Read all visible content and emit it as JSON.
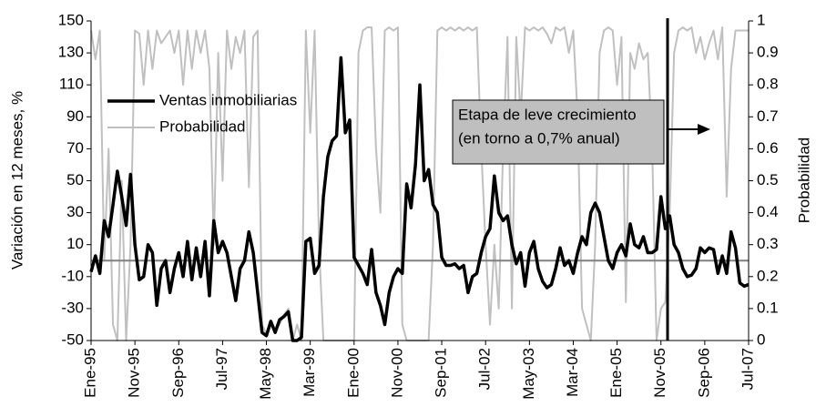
{
  "chart_data": {
    "type": "line",
    "ylabel": "Variación en 12 meses, %",
    "y2label": "Probabilidad",
    "annotations": [
      "Etapa de leve crecimiento",
      "(en torno a 0,7% anual)"
    ],
    "reference_line": 0,
    "categories": [
      "Ene-95",
      null,
      null,
      null,
      null,
      null,
      null,
      null,
      null,
      null,
      "Nov-95",
      null,
      null,
      null,
      null,
      null,
      null,
      null,
      null,
      null,
      "Sep-96",
      null,
      null,
      null,
      null,
      null,
      null,
      null,
      null,
      null,
      "Jul-97",
      null,
      null,
      null,
      null,
      null,
      null,
      null,
      null,
      null,
      "May-98",
      null,
      null,
      null,
      null,
      null,
      null,
      null,
      null,
      null,
      "Mar-99",
      null,
      null,
      null,
      null,
      null,
      null,
      null,
      null,
      null,
      "Ene-00",
      null,
      null,
      null,
      null,
      null,
      null,
      null,
      null,
      null,
      "Nov-00",
      null,
      null,
      null,
      null,
      null,
      null,
      null,
      null,
      null,
      "Sep-01",
      null,
      null,
      null,
      null,
      null,
      null,
      null,
      null,
      null,
      "Jul-02",
      null,
      null,
      null,
      null,
      null,
      null,
      null,
      null,
      null,
      "May-03",
      null,
      null,
      null,
      null,
      null,
      null,
      null,
      null,
      null,
      "Mar-04",
      null,
      null,
      null,
      null,
      null,
      null,
      null,
      null,
      null,
      "Ene-05",
      null,
      null,
      null,
      null,
      null,
      null,
      null,
      null,
      null,
      "Nov-05",
      null,
      null,
      null,
      null,
      null,
      null,
      null,
      null,
      null,
      "Sep-06",
      null,
      null,
      null,
      null,
      null,
      null,
      null,
      null,
      null,
      "Jul-07"
    ],
    "series": [
      {
        "name": "Ventas inmobiliarias",
        "color": "#000000",
        "width": 3.5,
        "values": [
          -7,
          3,
          -8,
          25,
          15,
          35,
          56,
          40,
          22,
          54,
          10,
          -12,
          -10,
          10,
          5,
          -28,
          -5,
          0,
          -20,
          -5,
          5,
          -10,
          12,
          -12,
          8,
          -10,
          12,
          -22,
          25,
          5,
          12,
          5,
          -10,
          -25,
          -5,
          0,
          18,
          5,
          -20,
          -45,
          -47,
          -38,
          -45,
          -37,
          -35,
          -32,
          -50,
          -50,
          -48,
          12,
          14,
          -8,
          -3,
          40,
          65,
          75,
          78,
          127,
          80,
          88,
          2,
          -3,
          -8,
          -15,
          7,
          -20,
          -28,
          -40,
          -20,
          -10,
          -5,
          -8,
          48,
          33,
          60,
          110,
          50,
          57,
          35,
          30,
          2,
          -3,
          -3,
          -2,
          -5,
          -3,
          -20,
          -10,
          -8,
          5,
          15,
          20,
          53,
          30,
          25,
          28,
          10,
          -2,
          5,
          -16,
          5,
          12,
          -5,
          -13,
          -17,
          -15,
          -5,
          8,
          -3,
          0,
          -8,
          5,
          15,
          10,
          30,
          36,
          30,
          15,
          0,
          -5,
          5,
          10,
          3,
          23,
          10,
          8,
          15,
          5,
          5,
          7,
          40,
          20,
          28,
          10,
          5,
          -5,
          -10,
          -9,
          -5,
          8,
          5,
          8,
          7,
          -8,
          3,
          -8,
          18,
          8,
          -14,
          -16,
          -15
        ]
      },
      {
        "name": "Probabilidad",
        "color": "#c0c0c0",
        "width": 2,
        "axis": "y2",
        "values": [
          0.97,
          0.88,
          0.97,
          0.25,
          0.6,
          0.05,
          0,
          0.5,
          0,
          0.3,
          0.97,
          0.96,
          0.8,
          0.97,
          0.85,
          0.97,
          0.93,
          0.95,
          0.97,
          0.9,
          0.97,
          0.8,
          0.97,
          0.85,
          0.97,
          0.9,
          0.97,
          0.85,
          0.3,
          0.9,
          0.5,
          0.97,
          0.85,
          0.95,
          0.9,
          0.97,
          0.48,
          0.95,
          0.97,
          0.05,
          0.02,
          0.05,
          0.03,
          0.05,
          0.08,
          0.1,
          0,
          0.05,
          0,
          0.97,
          0.65,
          0.97,
          0.3,
          0,
          0,
          0,
          0,
          0,
          0,
          0,
          0,
          0.9,
          0.97,
          0.98,
          0.98,
          0.6,
          0.4,
          0.97,
          0.98,
          0.97,
          0.98,
          0.05,
          0,
          0,
          0,
          0,
          0,
          0,
          0.3,
          0.97,
          0.98,
          0.97,
          0.98,
          0.97,
          0.98,
          0.97,
          0.98,
          0.97,
          0.98,
          0.6,
          0.3,
          0.05,
          0.3,
          0.1,
          0.6,
          0.95,
          0.1,
          0.95,
          0.7,
          0.98,
          0.97,
          0.98,
          0.97,
          0.98,
          0.96,
          0.93,
          0.98,
          0.97,
          0.98,
          0.9,
          0.97,
          0.7,
          0.1,
          0.05,
          0,
          0.3,
          0.9,
          0.97,
          0.98,
          0.97,
          0.8,
          0.95,
          0.12,
          0.9,
          0.85,
          0.93,
          0.88,
          0.9,
          0.6,
          0,
          0.1,
          0.12,
          0.4,
          0.9,
          0.97,
          0.98,
          0.97,
          0.98,
          0.9,
          0.95,
          0.88,
          0.93,
          0.97,
          0.88,
          0.98,
          0.45,
          0.85,
          0.97,
          0.97,
          0.97,
          0.97
        ]
      }
    ],
    "ylim": [
      -50,
      150
    ],
    "yticks": [
      -50,
      -30,
      -10,
      10,
      30,
      50,
      70,
      90,
      110,
      130,
      150
    ],
    "y2lim": [
      0,
      1
    ],
    "y2ticks": [
      0,
      0.1,
      0.2,
      0.3,
      0.4,
      0.5,
      0.6,
      0.7,
      0.8,
      0.9,
      1
    ],
    "grid": false
  }
}
